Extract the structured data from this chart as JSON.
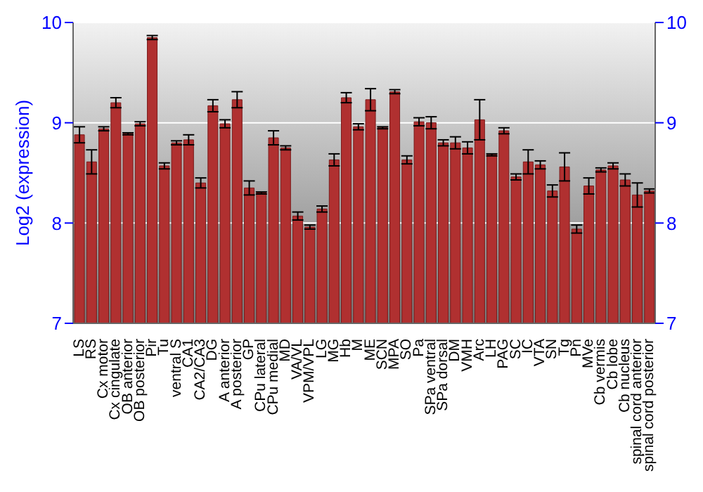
{
  "chart_data": {
    "type": "bar",
    "ylabel": "Log2 (expression)",
    "categories": [
      "LS",
      "RS",
      "Cx motor",
      "Cx cingulate",
      "OB anterior",
      "OB posterior",
      "Pir",
      "Tu",
      "ventral S",
      "CA1",
      "CA2/CA3",
      "DG",
      "A anterior",
      "A posterior",
      "GP",
      "CPu lateral",
      "CPu medial",
      "MD",
      "VA/VL",
      "VPM/VPL",
      "LG",
      "MG",
      "Hb",
      "M",
      "ME",
      "SCN",
      "MPA",
      "SO",
      "Pa",
      "SPa ventral",
      "SPa dorsal",
      "DM",
      "VMH",
      "Arc",
      "LH",
      "PAG",
      "SC",
      "IC",
      "VTA",
      "SN",
      "Tg",
      "Pn",
      "MVe",
      "Cb vermis",
      "Cb lobe",
      "Cb nucleus",
      "spinal cord anterior",
      "spinal cord posterior"
    ],
    "values": [
      8.88,
      8.61,
      8.94,
      9.2,
      8.89,
      8.99,
      9.85,
      8.57,
      8.8,
      8.83,
      8.4,
      9.17,
      8.99,
      9.23,
      8.35,
      8.3,
      8.85,
      8.75,
      8.07,
      7.96,
      8.14,
      8.63,
      9.25,
      8.96,
      9.23,
      8.95,
      9.31,
      8.63,
      9.01,
      9.0,
      8.8,
      8.8,
      8.75,
      9.03,
      8.68,
      8.92,
      8.46,
      8.61,
      8.58,
      8.32,
      8.56,
      7.94,
      8.37,
      8.53,
      8.57,
      8.43,
      8.28,
      8.32
    ],
    "errors": [
      0.08,
      0.12,
      0.02,
      0.05,
      0.01,
      0.02,
      0.02,
      0.03,
      0.02,
      0.05,
      0.05,
      0.06,
      0.04,
      0.08,
      0.07,
      0.01,
      0.07,
      0.02,
      0.04,
      0.02,
      0.03,
      0.06,
      0.05,
      0.03,
      0.11,
      0.01,
      0.02,
      0.04,
      0.04,
      0.06,
      0.03,
      0.06,
      0.06,
      0.2,
      0.01,
      0.03,
      0.03,
      0.12,
      0.04,
      0.06,
      0.14,
      0.04,
      0.08,
      0.02,
      0.03,
      0.06,
      0.12,
      0.02
    ],
    "color": "#b03030",
    "ylim": [
      7,
      10
    ],
    "yticks": [
      7,
      8,
      9,
      10
    ],
    "y2lim": [
      7,
      10
    ],
    "y2ticks": [
      7,
      8,
      9,
      10
    ],
    "grid": "y"
  }
}
